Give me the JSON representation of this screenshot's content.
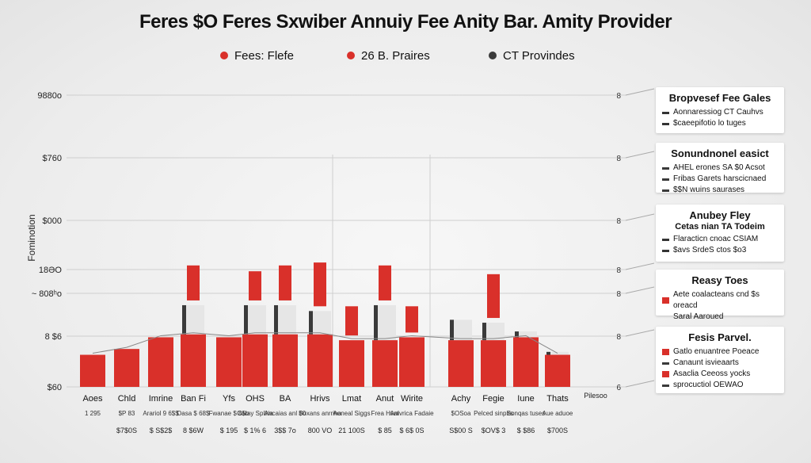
{
  "title": "Feres $O Feres Sxwiber Annuiy Fee Anity Bar. Amity Provider",
  "legend": [
    {
      "label": "Fees: Flefe",
      "color": "#d9302a"
    },
    {
      "label": "26 B. Praires",
      "color": "#d9302a"
    },
    {
      "label": "CT Provindes",
      "color": "#3a3a3a"
    }
  ],
  "colors": {
    "primary": "#d9302a",
    "dark": "#3a3a3a",
    "light": "#e6e6e6",
    "line": "#cfcfcf"
  },
  "chart_data": {
    "type": "bar",
    "title": "Feres $O Feres Sxwiber Annuiy Fee Anity Bar. Amity Provider",
    "ylabel": "Fominotion",
    "y_ticks": [
      "9880o",
      "$760",
      "$000",
      "18ƏO",
      "~ 808ʰo",
      "8 $6",
      "$60"
    ],
    "right_ticks": [
      "8",
      "8",
      "8",
      "8",
      "8",
      "8",
      "6"
    ],
    "ylim": [
      0,
      100
    ],
    "categories": [
      "Aoes",
      "Chld",
      "Imrine",
      "Ban Fi",
      "Yfs",
      "OHS",
      "BA",
      "Hrivs",
      "Lmat",
      "Anut",
      "Wirite",
      "Achy",
      "Fegie",
      "Iune",
      "Thats"
    ],
    "right_end_label": "Pilesoo",
    "sub_labels": [
      [
        "1 295",
        ""
      ],
      [
        "$P 83",
        "$7$0S"
      ],
      [
        "Arariol 9 6$$",
        "$ S$2$"
      ],
      [
        "Dasa $ 68$",
        "8 $6W"
      ],
      [
        "Fwanae $ 8$b",
        "$ 195"
      ],
      [
        "Caray Spliria",
        "$ 1% 6"
      ],
      [
        "Ancaias anl $0",
        "3$$ 7o"
      ],
      [
        "Boxans anrrina",
        "800 VO"
      ],
      [
        "Aoneal Siggs",
        "21 100S"
      ],
      [
        "Frea Hvat",
        "$ 85"
      ],
      [
        "Anivrica Fadaie",
        "$ 6$ 0S"
      ],
      [
        "$OSoa",
        "S$00 S"
      ],
      [
        "Pelced sinpirs",
        "$OV$ 3"
      ],
      [
        "Sonqas tuses",
        "$ $86"
      ],
      [
        "Aue aduoe",
        "$700S"
      ]
    ],
    "series": [
      {
        "values": [
          11,
          13,
          17,
          18,
          17,
          18,
          18,
          18,
          16,
          16,
          17,
          16,
          16,
          17,
          11
        ]
      },
      {
        "values": [
          0,
          0,
          0,
          12,
          0,
          10,
          12,
          15,
          10,
          12,
          9,
          0,
          15,
          0,
          0
        ]
      },
      {
        "values": [
          0,
          0,
          0,
          10,
          0,
          10,
          10,
          8,
          0,
          12,
          0,
          7,
          6,
          2,
          1
        ]
      }
    ]
  },
  "side_boxes": [
    {
      "title": "Bropvesef Fee Gales",
      "rows": [
        "Aonnaressiog CT Cauhvs",
        "$caeepifotio lo tuges"
      ]
    },
    {
      "title": "Sonundnonel easict",
      "rows": [
        "AHEL erones SA $0 Acsot",
        "Fribas Garets harscicnaed",
        "$$N wuins saurases"
      ]
    },
    {
      "title": "Anubey Fley",
      "subtitle": "Cetas nian TA Todeim",
      "rows": [
        "Flaracticn cnoac CSIAM",
        "$avs SrdeS ctos $o3"
      ]
    },
    {
      "title": "Reasy Toes",
      "rows": [
        "Aete coalacteans cnd $s oreacd",
        "Saral Aaroued"
      ]
    },
    {
      "title": "Fesis Parvel.",
      "rows": [
        "Gatlo enuantree Poeace",
        "Canaunt isvieaarts",
        "Asaclia Ceeoss yocks",
        "sprocuctiol OEWAO"
      ]
    }
  ]
}
